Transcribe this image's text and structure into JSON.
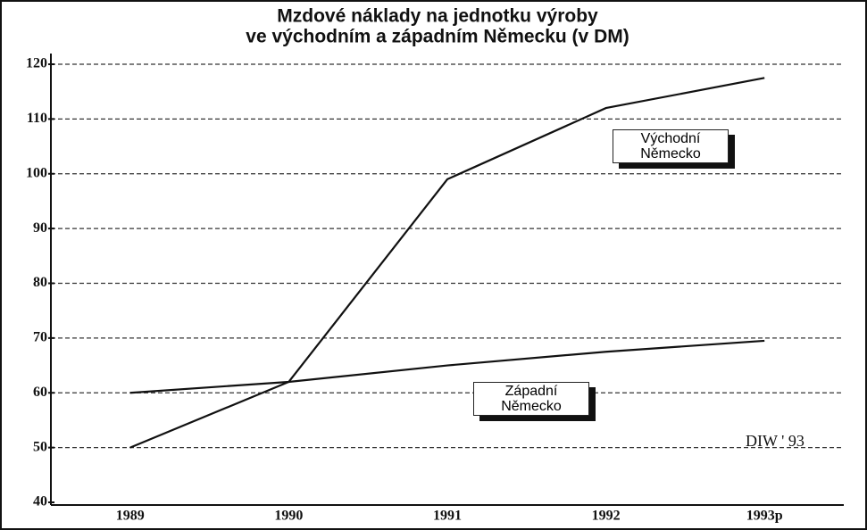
{
  "chart_data": {
    "type": "line",
    "title": [
      "Mzdové náklady na jednotku výroby",
      "ve východním a západním Německu (v DM)"
    ],
    "categories": [
      "1989",
      "1990",
      "1991",
      "1992",
      "1993p"
    ],
    "series": [
      {
        "name": "Východní Německo",
        "color": "#111111",
        "values": [
          50,
          62,
          99,
          112,
          117.5
        ]
      },
      {
        "name": "Západní Německo",
        "color": "#111111",
        "values": [
          60,
          62,
          65,
          67.5,
          69.5
        ]
      }
    ],
    "ylim": [
      40,
      120
    ],
    "yticks": [
      40,
      50,
      60,
      70,
      80,
      90,
      100,
      110,
      120
    ],
    "grid": true,
    "annotation": "DIW ' 93"
  }
}
